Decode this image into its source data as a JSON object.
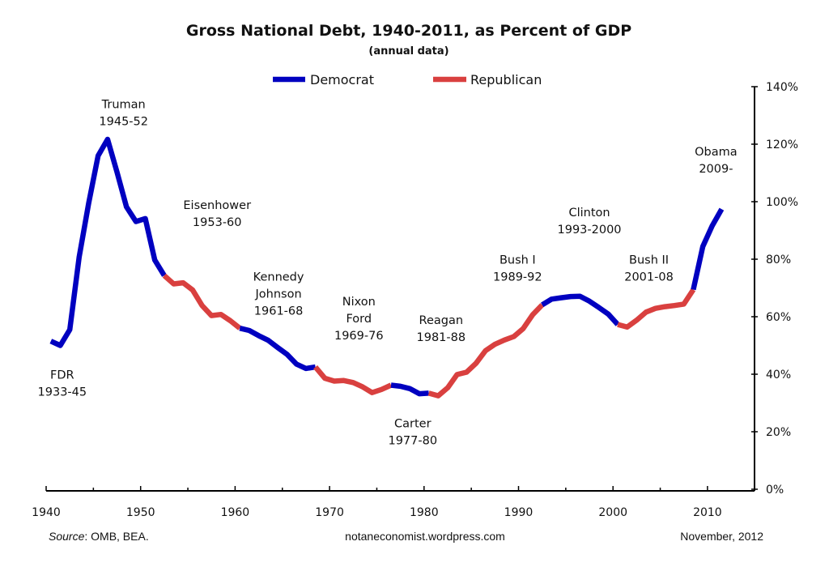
{
  "chart_data": {
    "type": "line",
    "title": "Gross National Debt, 1940-2011, as Percent of GDP",
    "subtitle": "(annual data)",
    "xlabel": "",
    "ylabel": "",
    "xlim": [
      1940,
      2015
    ],
    "ylim": [
      0,
      140
    ],
    "y_axis_position": "right",
    "grid": false,
    "legend_placement": "top-center",
    "x_ticks_major": [
      1940,
      1950,
      1960,
      1970,
      1980,
      1990,
      2000,
      2010
    ],
    "x_ticks_major_labels": [
      "1940",
      "1950",
      "1960",
      "1970",
      "1980",
      "1990",
      "2000",
      "2010"
    ],
    "x_ticks_minor": [
      1945,
      1955,
      1965,
      1975,
      1985,
      1995,
      2005,
      2015
    ],
    "y_ticks": [
      0,
      20,
      40,
      60,
      80,
      100,
      120,
      140
    ],
    "y_tick_labels": [
      "0%",
      "20%",
      "40%",
      "60%",
      "80%",
      "100%",
      "120%",
      "140%"
    ],
    "legend": [
      {
        "name": "Democrat",
        "color": "#0000c0"
      },
      {
        "name": "Republican",
        "color": "#d9403f"
      }
    ],
    "x": [
      1940,
      1941,
      1942,
      1943,
      1944,
      1945,
      1946,
      1947,
      1948,
      1949,
      1950,
      1951,
      1952,
      1953,
      1954,
      1955,
      1956,
      1957,
      1958,
      1959,
      1960,
      1961,
      1962,
      1963,
      1964,
      1965,
      1966,
      1967,
      1968,
      1969,
      1970,
      1971,
      1972,
      1973,
      1974,
      1975,
      1976,
      1977,
      1978,
      1979,
      1980,
      1981,
      1982,
      1983,
      1984,
      1985,
      1986,
      1987,
      1988,
      1989,
      1990,
      1991,
      1992,
      1993,
      1994,
      1995,
      1996,
      1997,
      1998,
      1999,
      2000,
      2001,
      2002,
      2003,
      2004,
      2005,
      2006,
      2007,
      2008,
      2009,
      2010,
      2011
    ],
    "values": [
      51.5,
      50.0,
      55.5,
      80.8,
      99.4,
      116.0,
      121.7,
      110.3,
      98.2,
      93.1,
      94.1,
      79.7,
      74.3,
      71.4,
      71.8,
      69.3,
      63.9,
      60.4,
      60.8,
      58.6,
      56.0,
      55.2,
      53.4,
      51.8,
      49.3,
      46.9,
      43.5,
      42.0,
      42.5,
      38.6,
      37.6,
      37.8,
      37.1,
      35.6,
      33.6,
      34.7,
      36.2,
      35.8,
      35.0,
      33.2,
      33.4,
      32.5,
      35.3,
      39.9,
      40.7,
      43.8,
      48.2,
      50.4,
      51.9,
      53.1,
      55.9,
      60.7,
      64.1,
      66.1,
      66.6,
      67.0,
      67.1,
      65.4,
      63.2,
      60.9,
      57.3,
      56.4,
      58.8,
      61.6,
      62.9,
      63.5,
      63.9,
      64.4,
      69.4,
      84.4,
      91.6,
      97.4
    ],
    "series": [
      {
        "name": "Democrat",
        "color": "#0000c0",
        "from": 1940,
        "to": 1952
      },
      {
        "name": "Republican",
        "color": "#d9403f",
        "from": 1952,
        "to": 1960
      },
      {
        "name": "Democrat",
        "color": "#0000c0",
        "from": 1960,
        "to": 1968
      },
      {
        "name": "Republican",
        "color": "#d9403f",
        "from": 1968,
        "to": 1976
      },
      {
        "name": "Democrat",
        "color": "#0000c0",
        "from": 1976,
        "to": 1980
      },
      {
        "name": "Republican",
        "color": "#d9403f",
        "from": 1980,
        "to": 1992
      },
      {
        "name": "Democrat",
        "color": "#0000c0",
        "from": 1992,
        "to": 2000
      },
      {
        "name": "Republican",
        "color": "#d9403f",
        "from": 2000,
        "to": 2008
      },
      {
        "name": "Democrat",
        "color": "#0000c0",
        "from": 2008,
        "to": 2011
      }
    ],
    "annotations": [
      {
        "lines": [
          "FDR",
          "1933-45"
        ],
        "x": 1941.7,
        "y": 38.5
      },
      {
        "lines": [
          "Truman",
          "1945-52"
        ],
        "x": 1948.2,
        "y": 132.5
      },
      {
        "lines": [
          "Eisenhower",
          "1953-60"
        ],
        "x": 1958.1,
        "y": 97.5
      },
      {
        "lines": [
          "Kennedy",
          "Johnson",
          "1961-68"
        ],
        "x": 1964.6,
        "y": 72.5
      },
      {
        "lines": [
          "Nixon",
          "Ford",
          "1969-76"
        ],
        "x": 1973.1,
        "y": 64.0
      },
      {
        "lines": [
          "Carter",
          "1977-80"
        ],
        "x": 1978.8,
        "y": 21.5
      },
      {
        "lines": [
          "Reagan",
          "1981-88"
        ],
        "x": 1981.8,
        "y": 57.5
      },
      {
        "lines": [
          "Bush I",
          "1989-92"
        ],
        "x": 1989.9,
        "y": 78.5
      },
      {
        "lines": [
          "Clinton",
          "1993-2000"
        ],
        "x": 1997.5,
        "y": 95.0
      },
      {
        "lines": [
          "Bush II",
          "2001-08"
        ],
        "x": 2003.8,
        "y": 78.5
      },
      {
        "lines": [
          "Obama",
          "2009-"
        ],
        "x": 2010.9,
        "y": 116.0
      }
    ]
  },
  "footer": {
    "source_label": "Source",
    "source_text": ": OMB, BEA.",
    "website": "notaneconomist.wordpress.com",
    "date": "November, 2012"
  }
}
